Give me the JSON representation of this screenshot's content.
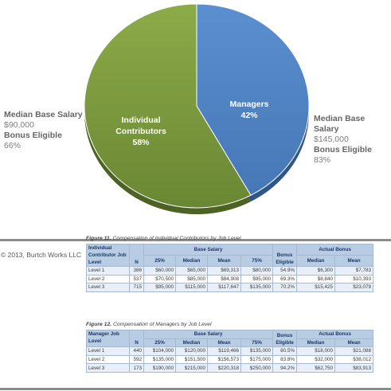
{
  "chart_data": {
    "type": "pie",
    "title": "",
    "slices": [
      {
        "label": "Managers",
        "value": 42,
        "value_label": "42%",
        "color": "#4f81bd"
      },
      {
        "label": "Individual Contributors",
        "value": 58,
        "value_label": "58%",
        "color": "#77933c"
      }
    ]
  },
  "slice_labels": {
    "managers_line1": "Managers",
    "managers_pct": "42%",
    "ic_line1": "Individual",
    "ic_line2": "Contributors",
    "ic_pct": "58%"
  },
  "left_annotation": {
    "title": "Median Base Salary",
    "value": "$90,000",
    "bonus_label": "Bonus Eligible",
    "bonus_value": "66%"
  },
  "right_annotation": {
    "title": "Median Base Salary",
    "value": "$145,000",
    "bonus_label": "Bonus Eligible",
    "bonus_value": "83%"
  },
  "copyright": "© 2013, Burtch Works LLC",
  "figure11": {
    "caption_bold": "Figure 11.",
    "caption_text": " Compensation of Individual Contributors by Job Level",
    "row_header": "Individual Contributor Job Level",
    "n": "N",
    "base_salary": "Base Salary",
    "bonus_eligible": "Bonus Eligible",
    "actual_bonus": "Actual Bonus",
    "sub": [
      "25%",
      "Median",
      "Mean",
      "75%",
      "Median",
      "Mean"
    ],
    "rows": [
      {
        "level": "Level 1",
        "n": "386",
        "p25": "$60,000",
        "median": "$65,000",
        "mean": "$69,313",
        "p75": "$80,000",
        "eligible": "54.9%",
        "bonus_median": "$6,300",
        "bonus_mean": "$7,783"
      },
      {
        "level": "Level 2",
        "n": "537",
        "p25": "$70,500",
        "median": "$85,000",
        "mean": "$84,908",
        "p75": "$95,000",
        "eligible": "69.3%",
        "bonus_median": "$8,840",
        "bonus_mean": "$10,393"
      },
      {
        "level": "Level 3",
        "n": "715",
        "p25": "$95,000",
        "median": "$115,000",
        "mean": "$117,647",
        "p75": "$135,000",
        "eligible": "70.2%",
        "bonus_median": "$15,425",
        "bonus_mean": "$23,079"
      }
    ]
  },
  "figure12": {
    "caption_bold": "Figure 12.",
    "caption_text": " Compensation of Managers by Job Level",
    "row_header": "Manager Job Level",
    "n": "N",
    "base_salary": "Base Salary",
    "bonus_eligible": "Bonus Eligible",
    "actual_bonus": "Actual Bonus",
    "sub": [
      "25%",
      "Median",
      "Mean",
      "75%",
      "Median",
      "Mean"
    ],
    "rows": [
      {
        "level": "Level 1",
        "n": "440",
        "p25": "$104,000",
        "median": "$120,000",
        "mean": "$119,466",
        "p75": "$135,000",
        "eligible": "80.5%",
        "bonus_median": "$18,000",
        "bonus_mean": "$21,088"
      },
      {
        "level": "Level 2",
        "n": "592",
        "p25": "$135,000",
        "median": "$151,500",
        "mean": "$156,573",
        "p75": "$175,000",
        "eligible": "83.8%",
        "bonus_median": "$32,000",
        "bonus_mean": "$38,012"
      },
      {
        "level": "Level 3",
        "n": "173",
        "p25": "$190,000",
        "median": "$215,000",
        "mean": "$220,318",
        "p75": "$250,000",
        "eligible": "94.2%",
        "bonus_median": "$62,750",
        "bonus_mean": "$83,913"
      }
    ]
  }
}
